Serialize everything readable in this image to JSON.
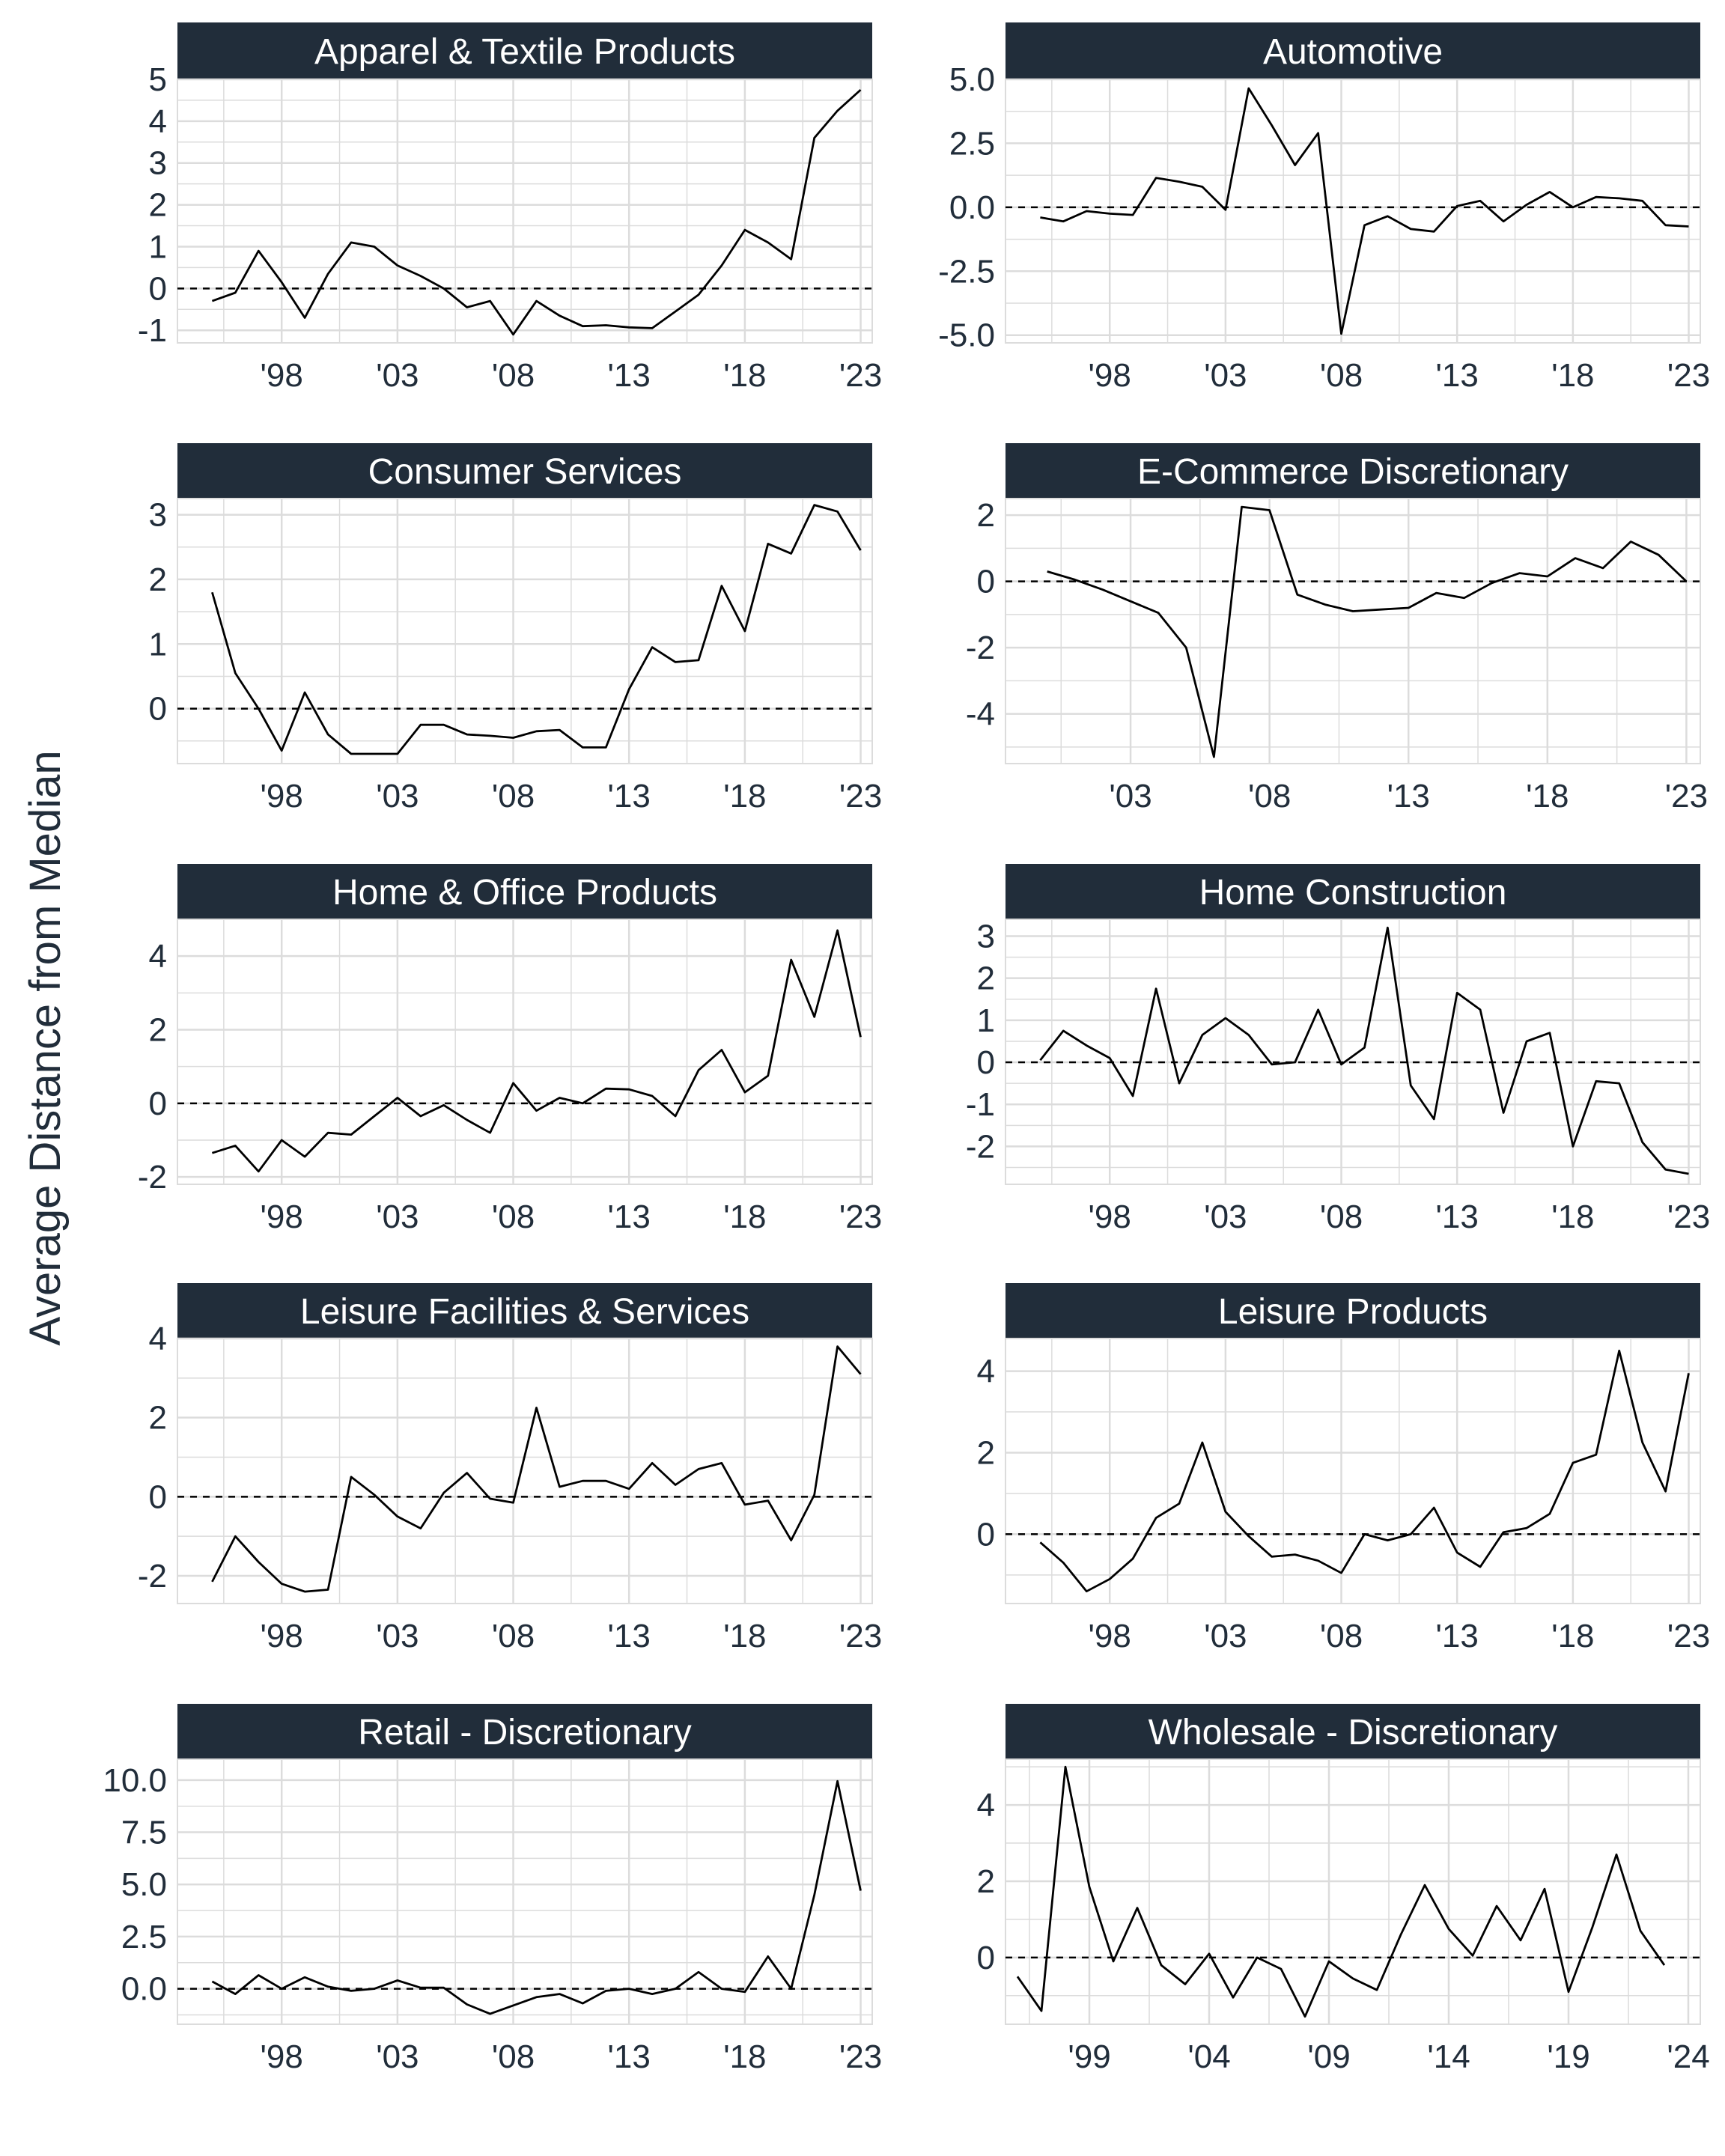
{
  "ylabel": "Average Distance from Median",
  "colors": {
    "strip": "#212d3a",
    "text": "#212d3a",
    "grid": "#dcdcdc",
    "line": "#000000",
    "reference": "#000000"
  },
  "chart_data": [
    {
      "type": "line",
      "title": "Apparel & Textile Products",
      "ylim": [
        -1.3,
        5.0
      ],
      "yticks": [
        -1,
        0,
        1,
        2,
        3,
        4,
        5
      ],
      "yticklabels": [
        "-1",
        "0",
        "1",
        "2",
        "3",
        "4",
        "5"
      ],
      "xlim": [
        1993.5,
        2023.5
      ],
      "xticks": [
        1998,
        2003,
        2008,
        2013,
        2018,
        2023
      ],
      "xticklabels": [
        "'98",
        "'03",
        "'08",
        "'13",
        "'18",
        "'23"
      ],
      "reference_line": 0,
      "grid": true,
      "x": [
        1995,
        1996,
        1997,
        1998,
        1999,
        2000,
        2001,
        2002,
        2003,
        2004,
        2005,
        2006,
        2007,
        2008,
        2009,
        2010,
        2011,
        2012,
        2013,
        2014,
        2015,
        2016,
        2017,
        2018,
        2019,
        2020,
        2021,
        2022,
        2023
      ],
      "y": [
        -0.3,
        -0.1,
        0.9,
        0.15,
        -0.7,
        0.35,
        1.1,
        1.0,
        0.55,
        0.3,
        0.0,
        -0.45,
        -0.3,
        -1.1,
        -0.3,
        -0.65,
        -0.9,
        -0.88,
        -0.93,
        -0.95,
        -0.55,
        -0.15,
        0.55,
        1.4,
        1.1,
        0.7,
        3.6,
        4.25,
        4.75
      ]
    },
    {
      "type": "line",
      "title": "Automotive",
      "ylim": [
        -5.3,
        5.0
      ],
      "yticks": [
        -5,
        -2.5,
        0,
        2.5,
        5
      ],
      "yticklabels": [
        "-5.0",
        "-2.5",
        "0.0",
        "2.5",
        "5.0"
      ],
      "xlim": [
        1993.5,
        2023.5
      ],
      "xticks": [
        1998,
        2003,
        2008,
        2013,
        2018,
        2023
      ],
      "xticklabels": [
        "'98",
        "'03",
        "'08",
        "'13",
        "'18",
        "'23"
      ],
      "reference_line": 0,
      "grid": true,
      "x": [
        1995,
        1996,
        1997,
        1998,
        1999,
        2000,
        2001,
        2002,
        2003,
        2004,
        2005,
        2006,
        2007,
        2008,
        2009,
        2010,
        2011,
        2012,
        2013,
        2014,
        2015,
        2016,
        2017,
        2018,
        2019,
        2020,
        2021,
        2022,
        2023
      ],
      "y": [
        -0.4,
        -0.55,
        -0.15,
        -0.25,
        -0.3,
        1.15,
        1.0,
        0.8,
        -0.1,
        4.65,
        3.2,
        1.65,
        2.9,
        -4.95,
        -0.7,
        -0.35,
        -0.85,
        -0.95,
        0.05,
        0.25,
        -0.55,
        0.1,
        0.6,
        0.0,
        0.4,
        0.35,
        0.25,
        -0.7,
        -0.75
      ]
    },
    {
      "type": "line",
      "title": "Consumer Services",
      "ylim": [
        -0.85,
        3.25
      ],
      "yticks": [
        0,
        1,
        2,
        3
      ],
      "yticklabels": [
        "0",
        "1",
        "2",
        "3"
      ],
      "xlim": [
        1993.5,
        2023.5
      ],
      "xticks": [
        1998,
        2003,
        2008,
        2013,
        2018,
        2023
      ],
      "xticklabels": [
        "'98",
        "'03",
        "'08",
        "'13",
        "'18",
        "'23"
      ],
      "reference_line": 0,
      "grid": true,
      "x": [
        1995,
        1996,
        1997,
        1998,
        1999,
        2000,
        2001,
        2002,
        2003,
        2004,
        2005,
        2006,
        2007,
        2008,
        2009,
        2010,
        2011,
        2012,
        2013,
        2014,
        2015,
        2016,
        2017,
        2018,
        2019,
        2020,
        2021,
        2022,
        2023
      ],
      "y": [
        1.8,
        0.55,
        0.0,
        -0.65,
        0.25,
        -0.4,
        -0.7,
        -0.7,
        -0.7,
        -0.25,
        -0.25,
        -0.4,
        -0.42,
        -0.45,
        -0.35,
        -0.33,
        -0.6,
        -0.6,
        0.3,
        0.95,
        0.72,
        0.75,
        1.9,
        1.2,
        2.55,
        2.4,
        3.15,
        3.05,
        2.45
      ]
    },
    {
      "type": "line",
      "title": "E-Commerce Discretionary",
      "ylim": [
        -5.5,
        2.5
      ],
      "yticks": [
        -4,
        -2,
        0,
        2
      ],
      "yticklabels": [
        "-4",
        "-2",
        "0",
        "2"
      ],
      "xlim": [
        1998.5,
        2023.5
      ],
      "xticks": [
        2003,
        2008,
        2013,
        2018,
        2023
      ],
      "xticklabels": [
        "'03",
        "'08",
        "'13",
        "'18",
        "'23"
      ],
      "reference_line": 0,
      "grid": true,
      "x": [
        2000,
        2001,
        2002,
        2003,
        2004,
        2005,
        2006,
        2007,
        2008,
        2009,
        2010,
        2011,
        2012,
        2013,
        2014,
        2015,
        2016,
        2017,
        2018,
        2019,
        2020,
        2021,
        2022,
        2023
      ],
      "y": [
        0.3,
        0.05,
        -0.25,
        -0.6,
        -0.95,
        -2.0,
        -5.3,
        2.25,
        2.15,
        -0.4,
        -0.7,
        -0.9,
        -0.85,
        -0.8,
        -0.35,
        -0.5,
        -0.05,
        0.25,
        0.15,
        0.7,
        0.4,
        1.2,
        0.8,
        0.0
      ]
    },
    {
      "type": "line",
      "title": "Home & Office Products",
      "ylim": [
        -2.2,
        5.0
      ],
      "yticks": [
        -2,
        0,
        2,
        4
      ],
      "yticklabels": [
        "-2",
        "0",
        "2",
        "4"
      ],
      "xlim": [
        1993.5,
        2023.5
      ],
      "xticks": [
        1998,
        2003,
        2008,
        2013,
        2018,
        2023
      ],
      "xticklabels": [
        "'98",
        "'03",
        "'08",
        "'13",
        "'18",
        "'23"
      ],
      "reference_line": 0,
      "grid": true,
      "x": [
        1995,
        1996,
        1997,
        1998,
        1999,
        2000,
        2001,
        2002,
        2003,
        2004,
        2005,
        2006,
        2007,
        2008,
        2009,
        2010,
        2011,
        2012,
        2013,
        2014,
        2015,
        2016,
        2017,
        2018,
        2019,
        2020,
        2021,
        2022,
        2023
      ],
      "y": [
        -1.35,
        -1.15,
        -1.85,
        -1.0,
        -1.45,
        -0.8,
        -0.85,
        -0.35,
        0.15,
        -0.35,
        -0.05,
        -0.45,
        -0.8,
        0.55,
        -0.2,
        0.15,
        0.0,
        0.4,
        0.38,
        0.2,
        -0.35,
        0.9,
        1.45,
        0.3,
        0.75,
        3.9,
        2.35,
        4.7,
        1.8
      ]
    },
    {
      "type": "line",
      "title": "Home Construction",
      "ylim": [
        -2.9,
        3.4
      ],
      "yticks": [
        -2,
        -1,
        0,
        1,
        2,
        3
      ],
      "yticklabels": [
        "-2",
        "-1",
        "0",
        "1",
        "2",
        "3"
      ],
      "xlim": [
        1993.5,
        2023.5
      ],
      "xticks": [
        1998,
        2003,
        2008,
        2013,
        2018,
        2023
      ],
      "xticklabels": [
        "'98",
        "'03",
        "'08",
        "'13",
        "'18",
        "'23"
      ],
      "reference_line": 0,
      "grid": true,
      "x": [
        1995,
        1996,
        1997,
        1998,
        1999,
        2000,
        2001,
        2002,
        2003,
        2004,
        2005,
        2006,
        2007,
        2008,
        2009,
        2010,
        2011,
        2012,
        2013,
        2014,
        2015,
        2016,
        2017,
        2018,
        2019,
        2020,
        2021,
        2022,
        2023
      ],
      "y": [
        0.05,
        0.75,
        0.4,
        0.1,
        -0.8,
        1.75,
        -0.5,
        0.65,
        1.05,
        0.65,
        -0.05,
        0.0,
        1.25,
        -0.05,
        0.35,
        3.2,
        -0.55,
        -1.35,
        1.65,
        1.25,
        -1.2,
        0.5,
        0.7,
        -2.0,
        -0.45,
        -0.5,
        -1.9,
        -2.55,
        -2.65
      ]
    },
    {
      "type": "line",
      "title": "Leisure Facilities & Services",
      "ylim": [
        -2.7,
        4.0
      ],
      "yticks": [
        -2,
        0,
        2,
        4
      ],
      "yticklabels": [
        "-2",
        "0",
        "2",
        "4"
      ],
      "xlim": [
        1993.5,
        2023.5
      ],
      "xticks": [
        1998,
        2003,
        2008,
        2013,
        2018,
        2023
      ],
      "xticklabels": [
        "'98",
        "'03",
        "'08",
        "'13",
        "'18",
        "'23"
      ],
      "reference_line": 0,
      "grid": true,
      "x": [
        1995,
        1996,
        1997,
        1998,
        1999,
        2000,
        2001,
        2002,
        2003,
        2004,
        2005,
        2006,
        2007,
        2008,
        2009,
        2010,
        2011,
        2012,
        2013,
        2014,
        2015,
        2016,
        2017,
        2018,
        2019,
        2020,
        2021,
        2022,
        2023
      ],
      "y": [
        -2.15,
        -1.0,
        -1.65,
        -2.2,
        -2.4,
        -2.35,
        0.5,
        0.05,
        -0.5,
        -0.8,
        0.1,
        0.6,
        -0.05,
        -0.15,
        2.25,
        0.25,
        0.4,
        0.4,
        0.2,
        0.85,
        0.3,
        0.7,
        0.85,
        -0.2,
        -0.1,
        -1.1,
        0.05,
        3.8,
        3.1
      ]
    },
    {
      "type": "line",
      "title": "Leisure Products",
      "ylim": [
        -1.7,
        4.8
      ],
      "yticks": [
        0,
        2,
        4
      ],
      "yticklabels": [
        "0",
        "2",
        "4"
      ],
      "xlim": [
        1993.5,
        2023.5
      ],
      "xticks": [
        1998,
        2003,
        2008,
        2013,
        2018,
        2023
      ],
      "xticklabels": [
        "'98",
        "'03",
        "'08",
        "'13",
        "'18",
        "'23"
      ],
      "reference_line": 0,
      "grid": true,
      "x": [
        1995,
        1996,
        1997,
        1998,
        1999,
        2000,
        2001,
        2002,
        2003,
        2004,
        2005,
        2006,
        2007,
        2008,
        2009,
        2010,
        2011,
        2012,
        2013,
        2014,
        2015,
        2016,
        2017,
        2018,
        2019,
        2020,
        2021,
        2022,
        2023
      ],
      "y": [
        -0.2,
        -0.7,
        -1.4,
        -1.1,
        -0.6,
        0.4,
        0.75,
        2.25,
        0.55,
        -0.05,
        -0.55,
        -0.5,
        -0.65,
        -0.95,
        0.0,
        -0.15,
        0.0,
        0.65,
        -0.45,
        -0.8,
        0.05,
        0.15,
        0.5,
        1.75,
        1.95,
        4.5,
        2.25,
        1.05,
        3.95
      ]
    },
    {
      "type": "line",
      "title": "Retail - Discretionary",
      "ylim": [
        -1.7,
        11.0
      ],
      "yticks": [
        0,
        2.5,
        5,
        7.5,
        10
      ],
      "yticklabels": [
        "0.0",
        "2.5",
        "5.0",
        "7.5",
        "10.0"
      ],
      "xlim": [
        1993.5,
        2023.5
      ],
      "xticks": [
        1998,
        2003,
        2008,
        2013,
        2018,
        2023
      ],
      "xticklabels": [
        "'98",
        "'03",
        "'08",
        "'13",
        "'18",
        "'23"
      ],
      "reference_line": 0,
      "grid": true,
      "x": [
        1995,
        1996,
        1997,
        1998,
        1999,
        2000,
        2001,
        2002,
        2003,
        2004,
        2005,
        2006,
        2007,
        2008,
        2009,
        2010,
        2011,
        2012,
        2013,
        2014,
        2015,
        2016,
        2017,
        2018,
        2019,
        2020,
        2021,
        2022,
        2023
      ],
      "y": [
        0.35,
        -0.25,
        0.65,
        0.0,
        0.55,
        0.1,
        -0.1,
        0.0,
        0.4,
        0.05,
        0.05,
        -0.75,
        -1.2,
        -0.8,
        -0.4,
        -0.25,
        -0.7,
        -0.1,
        0.0,
        -0.25,
        0.0,
        0.8,
        0.0,
        -0.15,
        1.55,
        0.0,
        4.5,
        9.95,
        4.7
      ]
    },
    {
      "type": "line",
      "title": "Wholesale - Discretionary",
      "ylim": [
        -1.75,
        5.2
      ],
      "yticks": [
        0,
        2,
        4
      ],
      "yticklabels": [
        "0",
        "2",
        "4"
      ],
      "xlim": [
        1995.5,
        2024.5
      ],
      "xticks": [
        1999,
        2004,
        2009,
        2014,
        2019,
        2024
      ],
      "xticklabels": [
        "'99",
        "'04",
        "'09",
        "'14",
        "'19",
        "'24"
      ],
      "reference_line": 0,
      "grid": true,
      "x": [
        1996,
        1997,
        1998,
        1999,
        2000,
        2001,
        2002,
        2003,
        2004,
        2005,
        2006,
        2007,
        2008,
        2009,
        2010,
        2011,
        2012,
        2013,
        2014,
        2015,
        2016,
        2017,
        2018,
        2019,
        2020,
        2021,
        2022,
        2023
      ],
      "y": [
        -0.5,
        -1.4,
        5.0,
        1.85,
        -0.1,
        1.3,
        -0.2,
        -0.7,
        0.1,
        -1.05,
        0.0,
        -0.3,
        -1.55,
        -0.1,
        -0.55,
        -0.85,
        0.6,
        1.9,
        0.75,
        0.05,
        1.35,
        0.45,
        1.8,
        -0.9,
        0.8,
        2.7,
        0.7,
        -0.2
      ]
    }
  ]
}
